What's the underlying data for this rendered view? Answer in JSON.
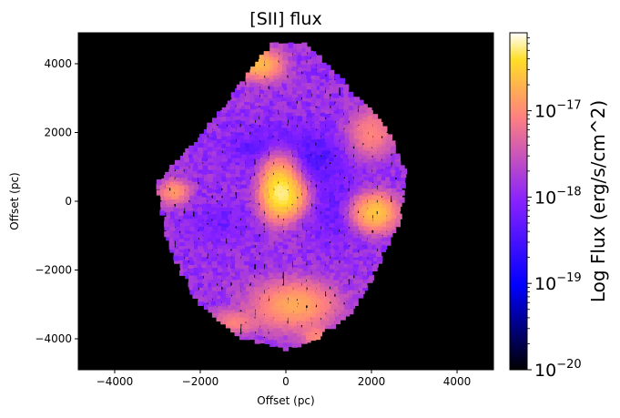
{
  "chart_data": {
    "type": "heatmap",
    "title": "[SII] flux",
    "xlabel": "Offset (pc)",
    "ylabel": "Offset (pc)",
    "xlim": [
      -4850,
      4850
    ],
    "ylim": [
      -4900,
      4900
    ],
    "x_ticks": [
      -4000,
      -2000,
      0,
      2000,
      4000
    ],
    "x_tick_labels": [
      "−4000",
      "−2000",
      "0",
      "2000",
      "4000"
    ],
    "y_ticks": [
      -4000,
      -2000,
      0,
      2000,
      4000
    ],
    "y_tick_labels": [
      "−4000",
      "−2000",
      "0",
      "2000",
      "4000"
    ],
    "background_color": "#000000",
    "grid": false,
    "colormap": "gnuplot2",
    "colorbar": {
      "label": "Log Flux (erg/s/cm^2)",
      "scale": "log",
      "range": [
        1e-20,
        8e-17
      ],
      "ticks": [
        1e-20,
        1e-19,
        1e-18,
        1e-17
      ],
      "tick_labels": [
        {
          "base": "10",
          "exp": "−20"
        },
        {
          "base": "10",
          "exp": "−19"
        },
        {
          "base": "10",
          "exp": "−18"
        },
        {
          "base": "10",
          "exp": "−17"
        }
      ]
    },
    "emission_region": {
      "outline": [
        [
          -300,
          4600
        ],
        [
          450,
          4600
        ],
        [
          1400,
          3400
        ],
        [
          2300,
          2200
        ],
        [
          2800,
          900
        ],
        [
          2700,
          -500
        ],
        [
          2300,
          -1500
        ],
        [
          1600,
          -3200
        ],
        [
          700,
          -4000
        ],
        [
          0,
          -4300
        ],
        [
          -1000,
          -4000
        ],
        [
          -2000,
          -3000
        ],
        [
          -2500,
          -2000
        ],
        [
          -2800,
          -1000
        ],
        [
          -3000,
          500
        ],
        [
          -2300,
          1500
        ],
        [
          -1600,
          2500
        ],
        [
          -800,
          3800
        ]
      ],
      "background_flux": 1.4e-18,
      "bright_knots": [
        {
          "x": -150,
          "y": 350,
          "sx": 230,
          "sy": 450,
          "flux": 4e-17
        },
        {
          "x": 50,
          "y": 150,
          "sx": 250,
          "sy": 300,
          "flux": 2e-17
        },
        {
          "x": -600,
          "y": 4000,
          "sx": 300,
          "sy": 250,
          "flux": 2e-17
        },
        {
          "x": 2100,
          "y": -300,
          "sx": 280,
          "sy": 300,
          "flux": 2.5e-17
        },
        {
          "x": 200,
          "y": -3000,
          "sx": 550,
          "sy": 400,
          "flux": 1.5e-17
        },
        {
          "x": -2600,
          "y": 300,
          "sx": 200,
          "sy": 200,
          "flux": 1.2e-17
        },
        {
          "x": 2000,
          "y": 2000,
          "sx": 300,
          "sy": 400,
          "flux": 8e-18
        },
        {
          "x": -1200,
          "y": -3500,
          "sx": 300,
          "sy": 200,
          "flux": 7e-18
        },
        {
          "x": 700,
          "y": -3900,
          "sx": 200,
          "sy": 150,
          "flux": 8e-18
        }
      ],
      "faint_regions": [
        {
          "x": -400,
          "y": 1600,
          "sx": 800,
          "sy": 500,
          "flux": 5e-19
        },
        {
          "x": 700,
          "y": 1200,
          "sx": 700,
          "sy": 700,
          "flux": 4e-19
        },
        {
          "x": 1200,
          "y": -300,
          "sx": 500,
          "sy": 800,
          "flux": 6e-19
        },
        {
          "x": -1500,
          "y": -600,
          "sx": 500,
          "sy": 500,
          "flux": 7e-19
        }
      ]
    }
  }
}
